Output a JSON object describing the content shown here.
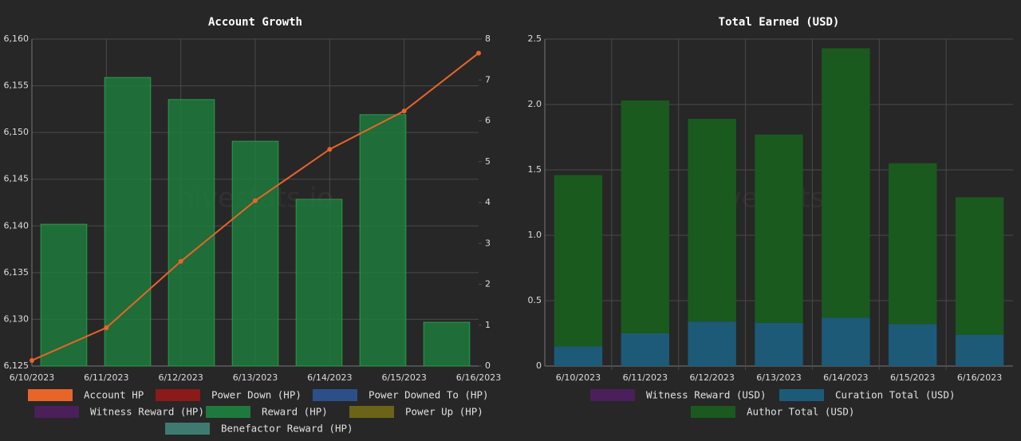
{
  "chart_data": [
    {
      "type": "combo",
      "title": "Account Growth",
      "watermark": "hivestats.io",
      "categories": [
        "6/10/2023",
        "6/11/2023",
        "6/12/2023",
        "6/13/2023",
        "6/14/2023",
        "6/15/2023",
        "6/16/2023"
      ],
      "ylim": [
        6125,
        6160
      ],
      "yticks": [
        {
          "value": 6125,
          "label": "6,125"
        },
        {
          "value": 6130,
          "label": "6,130"
        },
        {
          "value": 6135,
          "label": "6,135"
        },
        {
          "value": 6140,
          "label": "6,140"
        },
        {
          "value": 6145,
          "label": "6,145"
        },
        {
          "value": 6150,
          "label": "6,150"
        },
        {
          "value": 6155,
          "label": "6,155"
        },
        {
          "value": 6160,
          "label": "6,160"
        }
      ],
      "y2lim": [
        0,
        8
      ],
      "y2ticks": [
        0,
        1,
        2,
        3,
        4,
        5,
        6,
        7,
        8
      ],
      "grid": true,
      "series": [
        {
          "name": "Account HP",
          "type": "line",
          "axis": "y",
          "color": "#e8652a",
          "values": [
            6125.6,
            6129.1,
            6136.2,
            6142.7,
            6148.2,
            6152.3,
            6158.5
          ]
        },
        {
          "name": "Power Down (HP)",
          "type": "bar",
          "axis": "y2",
          "color": "#8b1a1a",
          "values": [
            null,
            null,
            null,
            null,
            null,
            null,
            null
          ]
        },
        {
          "name": "Power Downed To (HP)",
          "type": "bar",
          "axis": "y2",
          "color": "#2c4f8a",
          "values": [
            null,
            null,
            null,
            null,
            null,
            null,
            null
          ]
        },
        {
          "name": "Witness Reward (HP)",
          "type": "bar",
          "axis": "y2",
          "color": "#4a1f5a",
          "values": [
            null,
            null,
            null,
            null,
            null,
            null,
            null
          ]
        },
        {
          "name": "Reward (HP)",
          "type": "bar",
          "axis": "y2",
          "color": "#1e7a3c",
          "values": [
            3.47,
            7.06,
            6.52,
            5.5,
            4.08,
            6.15,
            1.07
          ]
        },
        {
          "name": "Power Up (HP)",
          "type": "bar",
          "axis": "y2",
          "color": "#6b6418",
          "values": [
            null,
            null,
            null,
            null,
            null,
            null,
            null
          ]
        },
        {
          "name": "Benefactor Reward (HP)",
          "type": "bar",
          "axis": "y2",
          "color": "#3f7a70",
          "values": [
            null,
            null,
            null,
            null,
            null,
            null,
            null
          ]
        }
      ]
    },
    {
      "type": "stacked_bar",
      "title": "Total Earned (USD)",
      "watermark": "hivestats.io",
      "categories": [
        "6/10/2023",
        "6/11/2023",
        "6/12/2023",
        "6/13/2023",
        "6/14/2023",
        "6/15/2023",
        "6/16/2023"
      ],
      "ylim": [
        0,
        2.5
      ],
      "yticks": [
        0,
        0.5,
        {
          "value": 1,
          "label": "1.0"
        },
        1.5,
        {
          "value": 2,
          "label": "2.0"
        },
        2.5
      ],
      "grid": true,
      "series": [
        {
          "name": "Witness Reward (USD)",
          "color": "#4a1f5a",
          "values": [
            null,
            null,
            null,
            null,
            null,
            null,
            null
          ]
        },
        {
          "name": "Curation Total (USD)",
          "color": "#1d5a78",
          "values": [
            0.15,
            0.25,
            0.34,
            0.33,
            0.37,
            0.32,
            0.24
          ]
        },
        {
          "name": "Author Total (USD)",
          "color": "#1a5a1e",
          "values": [
            1.31,
            1.78,
            1.55,
            1.44,
            2.06,
            1.23,
            1.05
          ]
        }
      ]
    }
  ]
}
